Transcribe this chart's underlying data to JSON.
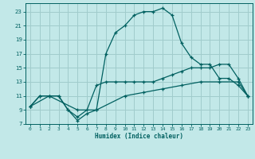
{
  "xlabel": "Humidex (Indice chaleur)",
  "bg_color": "#c2e8e8",
  "grid_color": "#a0cccc",
  "line_color": "#006060",
  "xlim": [
    -0.5,
    23.5
  ],
  "ylim": [
    7,
    24.2
  ],
  "xticks": [
    0,
    1,
    2,
    3,
    4,
    5,
    6,
    7,
    8,
    9,
    10,
    11,
    12,
    13,
    14,
    15,
    16,
    17,
    18,
    19,
    20,
    21,
    22,
    23
  ],
  "yticks": [
    7,
    9,
    11,
    13,
    15,
    17,
    19,
    21,
    23
  ],
  "curve_main_x": [
    0,
    1,
    2,
    3,
    4,
    5,
    6,
    7,
    8,
    9,
    10,
    11,
    12,
    13,
    14,
    15,
    16,
    17,
    18,
    19,
    20,
    21,
    22,
    23
  ],
  "curve_main_y": [
    9.5,
    11,
    11,
    11,
    9,
    7.5,
    8.5,
    9,
    17,
    20,
    21,
    22.5,
    23,
    23,
    23.5,
    22.5,
    18.5,
    16.5,
    15.5,
    15.5,
    13.5,
    13.5,
    12.5,
    11
  ],
  "curve_mid_x": [
    0,
    1,
    2,
    3,
    4,
    5,
    6,
    7,
    8,
    9,
    10,
    11,
    12,
    13,
    14,
    15,
    16,
    17,
    18,
    19,
    20,
    21,
    22,
    23
  ],
  "curve_mid_y": [
    9.5,
    11,
    11,
    11,
    9,
    8,
    9,
    12.5,
    13,
    13,
    13,
    13,
    13,
    13,
    13.5,
    14,
    14.5,
    15,
    15,
    15,
    15.5,
    15.5,
    13.5,
    11
  ],
  "curve_low_x": [
    0,
    2,
    5,
    7,
    10,
    12,
    14,
    16,
    18,
    20,
    22,
    23
  ],
  "curve_low_y": [
    9.5,
    11,
    9,
    9,
    11,
    11.5,
    12,
    12.5,
    13,
    13,
    13,
    11
  ]
}
